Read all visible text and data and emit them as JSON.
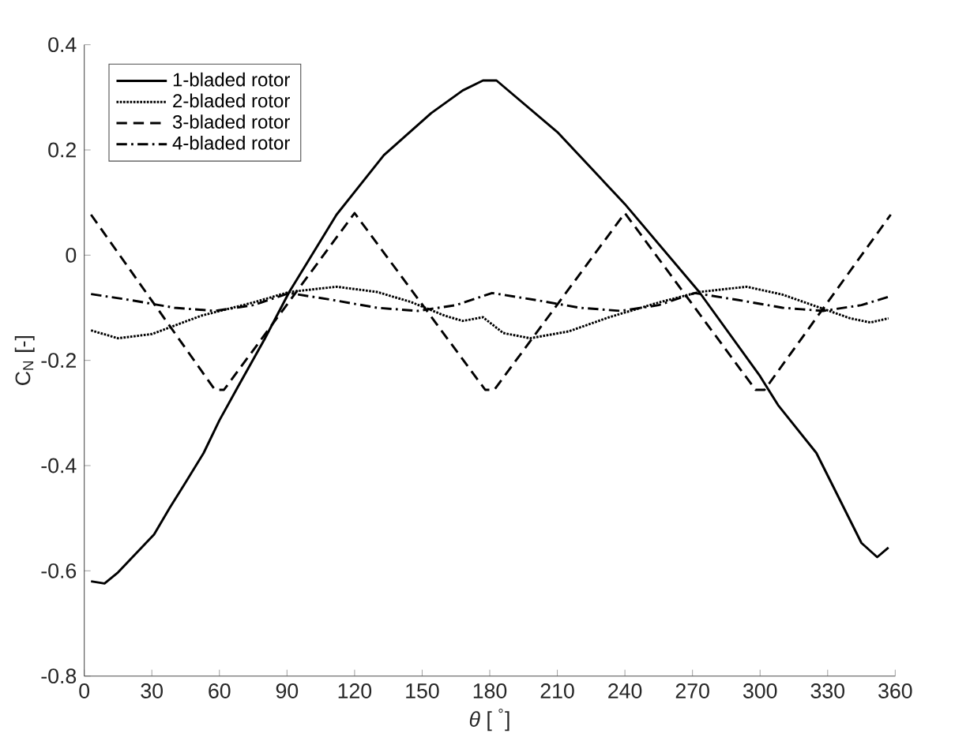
{
  "chart_data": {
    "type": "line",
    "xlabel": "*θ* [ $^{°}$]",
    "ylabel": "C$_{N}$ [-]",
    "xlim": [
      0,
      360
    ],
    "ylim": [
      -0.8,
      0.4
    ],
    "xticks": [
      0,
      30,
      60,
      90,
      120,
      150,
      180,
      210,
      240,
      270,
      300,
      330,
      360
    ],
    "yticks": [
      -0.8,
      -0.6,
      -0.4,
      -0.2,
      0,
      0.2,
      0.4
    ],
    "grid": false,
    "legend": "top left",
    "marker": "none",
    "series": [
      {
        "name": "1-bladed rotor",
        "color": "#000000",
        "line_style": "solid",
        "x": [
          3,
          9,
          15,
          23,
          31,
          38,
          45,
          53,
          60,
          68,
          80,
          91,
          112,
          133,
          154,
          168,
          177,
          183,
          210,
          240,
          273,
          300,
          308,
          325,
          345,
          352,
          357
        ],
        "values": [
          -0.62,
          -0.624,
          -0.603,
          -0.567,
          -0.531,
          -0.48,
          -0.432,
          -0.376,
          -0.314,
          -0.252,
          -0.16,
          -0.07,
          0.077,
          0.19,
          0.27,
          0.313,
          0.332,
          0.332,
          0.234,
          0.097,
          -0.07,
          -0.23,
          -0.285,
          -0.376,
          -0.547,
          -0.574,
          -0.556
        ]
      },
      {
        "name": "2-bladed rotor",
        "color": "#000000",
        "line_style": "dotted",
        "x": [
          3,
          15,
          30,
          52,
          75,
          91,
          112,
          130,
          145,
          160,
          168,
          177,
          186,
          198,
          215,
          233,
          255,
          273,
          294,
          310,
          326,
          340,
          349,
          357
        ],
        "values": [
          -0.143,
          -0.158,
          -0.15,
          -0.115,
          -0.09,
          -0.07,
          -0.06,
          -0.07,
          -0.089,
          -0.115,
          -0.125,
          -0.118,
          -0.148,
          -0.158,
          -0.145,
          -0.118,
          -0.09,
          -0.07,
          -0.06,
          -0.075,
          -0.099,
          -0.12,
          -0.128,
          -0.12
        ]
      },
      {
        "name": "3-bladed rotor",
        "color": "#000000",
        "line_style": "dashed",
        "x": [
          3,
          58,
          62,
          120,
          178,
          182,
          240,
          298,
          302,
          358
        ],
        "values": [
          0.077,
          -0.256,
          -0.256,
          0.08,
          -0.256,
          -0.256,
          0.08,
          -0.256,
          -0.256,
          0.077
        ]
      },
      {
        "name": "4-bladed rotor",
        "color": "#000000",
        "line_style": "dashdot",
        "x": [
          3,
          20,
          40,
          58,
          75,
          91,
          110,
          130,
          148,
          165,
          181,
          200,
          220,
          238,
          255,
          271,
          290,
          310,
          328,
          345,
          358
        ],
        "values": [
          -0.074,
          -0.085,
          -0.1,
          -0.106,
          -0.095,
          -0.072,
          -0.085,
          -0.1,
          -0.106,
          -0.095,
          -0.072,
          -0.085,
          -0.1,
          -0.106,
          -0.095,
          -0.072,
          -0.085,
          -0.1,
          -0.106,
          -0.095,
          -0.078
        ]
      }
    ]
  }
}
